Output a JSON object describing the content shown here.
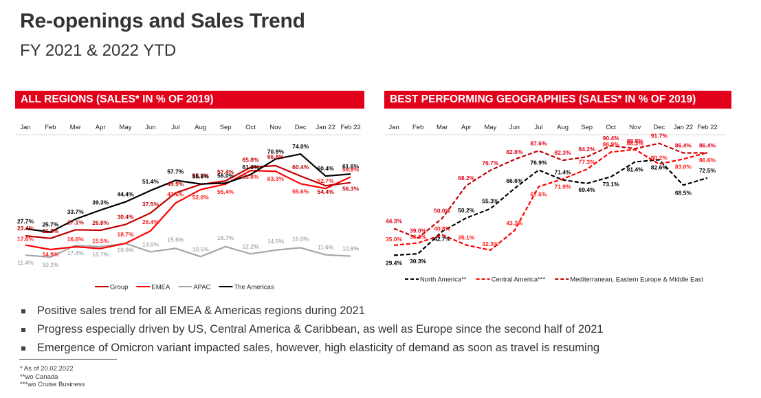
{
  "page": {
    "title": "Re-openings and Sales Trend",
    "subtitle": "FY 2021 & 2022 YTD"
  },
  "colors": {
    "header_red": "#e2001a",
    "group": "#c00000",
    "emea": "#ff0000",
    "apac": "#a6a6a6",
    "americas": "#000000",
    "north_america": "#000000",
    "central_america": "#ff0000",
    "mediterranean": "#c00000"
  },
  "chart_data": [
    {
      "type": "line",
      "title": "ALL REGIONS (SALES* IN % OF 2019)",
      "categories": [
        "Jan",
        "Feb",
        "Mar",
        "Apr",
        "May",
        "Jun",
        "Jul",
        "Aug",
        "Sep",
        "Oct",
        "Nov",
        "Dec",
        "Jan 22",
        "Feb 22"
      ],
      "xlabel": "",
      "ylabel": "Sales in % of 2019",
      "ylim": [
        0,
        80
      ],
      "grid": false,
      "legend_position": "bottom",
      "series": [
        {
          "name": "Group",
          "color": "#c00000",
          "dash": false,
          "values": [
            23.4,
            21.8,
            27.1,
            26.8,
            30.4,
            37.5,
            49.9,
            55.2,
            57.4,
            65.8,
            66.8,
            60.4,
            54.4,
            56.3
          ],
          "labels": [
            "23.4%",
            "21.8%",
            "27.1%",
            "26.8%",
            "30.4%",
            "37.5%",
            "49.9%",
            "55.2%",
            "57.4%",
            "65.8%",
            "66.8%",
            "60.4%",
            "54.4%",
            "56.3%"
          ]
        },
        {
          "name": "EMEA",
          "color": "#ff0000",
          "dash": false,
          "values": [
            17.6,
            14.9,
            16.6,
            15.5,
            18.7,
            26.4,
            43.6,
            52.0,
            55.4,
            63.8,
            63.3,
            55.6,
            52.7,
            59.8
          ],
          "labels": [
            "17.6%",
            "14.9%",
            "16.6%",
            "15.5%",
            "18.7%",
            "26.4%",
            "43.6%",
            "52.0%",
            "55.4%",
            "63.8%",
            "63.3%",
            "55.6%",
            "52.7%",
            "59.8%"
          ]
        },
        {
          "name": "APAC",
          "color": "#a6a6a6",
          "dash": false,
          "values": [
            11.4,
            10.2,
            17.4,
            16.7,
            18.6,
            13.5,
            15.6,
            10.5,
            16.7,
            12.2,
            14.5,
            16.0,
            11.6,
            10.8
          ],
          "labels": [
            "11.4%",
            "10.2%",
            "17.4%",
            "16.7%",
            "18.6%",
            "13.5%",
            "15.6%",
            "10.5%",
            "16.7%",
            "12.2%",
            "14.5%",
            "16.0%",
            "11.6%",
            "10.8%"
          ]
        },
        {
          "name": "The Americas",
          "color": "#000000",
          "dash": false,
          "values": [
            27.7,
            25.7,
            33.7,
            39.3,
            44.4,
            51.4,
            57.7,
            55.5,
            56.0,
            61.3,
            70.9,
            74.0,
            60.4,
            61.6
          ],
          "labels": [
            "27.7%",
            "25.7%",
            "33.7%",
            "39.3%",
            "44.4%",
            "51.4%",
            "57.7%",
            "55.5%",
            "56.0%",
            "61.3%",
            "70.9%",
            "74.0%",
            "60.4%",
            "61.6%"
          ]
        }
      ]
    },
    {
      "type": "line",
      "title": "BEST PERFORMING GEOGRAPHIES (SALES* IN % OF 2019)",
      "categories": [
        "Jan",
        "Feb",
        "Mar",
        "Apr",
        "May",
        "Jun",
        "Jul",
        "Aug",
        "Sep",
        "Oct",
        "Nov",
        "Dec",
        "Jan 22",
        "Feb 22"
      ],
      "xlabel": "",
      "ylabel": "Sales in % of 2019",
      "ylim": [
        20,
        95
      ],
      "grid": false,
      "legend_position": "bottom",
      "series": [
        {
          "name": "North America**",
          "color": "#000000",
          "dash": true,
          "values": [
            29.4,
            30.3,
            42.7,
            50.2,
            55.3,
            66.6,
            76.9,
            71.4,
            69.4,
            73.1,
            81.4,
            82.6,
            68.5,
            72.5
          ],
          "labels": [
            "29.4%",
            "30.3%",
            "42.7%",
            "50.2%",
            "55.3%",
            "66.6%",
            "76.9%",
            "71.4%",
            "69.4%",
            "73.1%",
            "81.4%",
            "82.6%",
            "68.5%",
            "72.5%"
          ]
        },
        {
          "name": "Central America***",
          "color": "#ff0000",
          "dash": true,
          "values": [
            35.0,
            36.3,
            40.8,
            35.1,
            32.3,
            43.2,
            67.6,
            71.9,
            77.3,
            86.9,
            88.3,
            80.2,
            83.0,
            86.6
          ],
          "labels": [
            "35.0%",
            "36.3%",
            "40.8%",
            "35.1%",
            "32.3%",
            "43.2%",
            "67.6%",
            "71.9%",
            "77.3%",
            "86.9%",
            "88.3%",
            "80.2%",
            "83.0%",
            "86.6%"
          ]
        },
        {
          "name": "Mediterranean, Eastern Europe & Middle East",
          "color": "#c00000",
          "dash": true,
          "values": [
            44.3,
            39.0,
            50.0,
            68.2,
            76.7,
            82.8,
            87.6,
            82.3,
            84.2,
            90.4,
            88.8,
            91.7,
            86.4,
            86.4
          ],
          "labels": [
            "44.3%",
            "39.0%",
            "50.0%",
            "68.2%",
            "76.7%",
            "82.8%",
            "87.6%",
            "82.3%",
            "84.2%",
            "90.4%",
            "88.8%",
            "91.7%",
            "86.4%",
            "86.4%"
          ]
        }
      ]
    }
  ],
  "bullets": [
    "Positive sales trend for all EMEA & Americas regions during 2021",
    "Progress especially driven by US, Central America & Caribbean, as well as Europe since the second half of 2021",
    "Emergence of Omicron variant impacted sales, however, high elasticity of demand as soon as travel is resuming"
  ],
  "footnotes": [
    "* As of 20.02.2022",
    "**wo Canada",
    "***wo Cruise Business"
  ]
}
